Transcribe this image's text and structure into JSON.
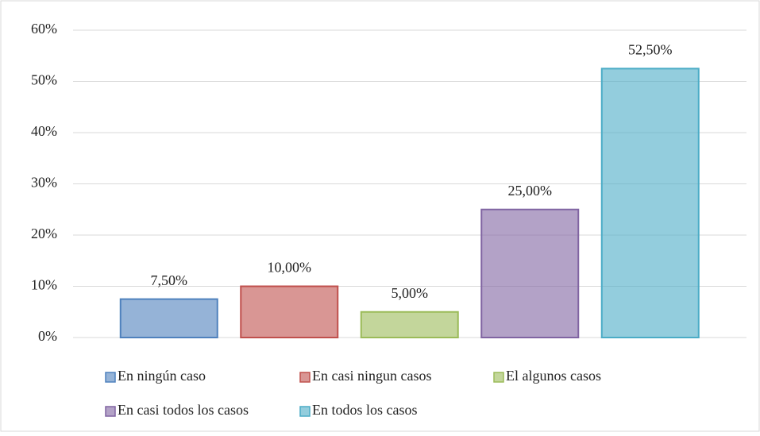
{
  "chart_data": {
    "type": "bar",
    "series": [
      {
        "name": "En ningún caso",
        "color": "#4f81bd",
        "values": [
          7.5
        ],
        "value_labels": [
          "7,50%"
        ]
      },
      {
        "name": "En casi ningun casos",
        "color": "#c0504d",
        "values": [
          10
        ],
        "value_labels": [
          "10,00%"
        ]
      },
      {
        "name": "El algunos casos",
        "color": "#9bbb59",
        "values": [
          5
        ],
        "value_labels": [
          "5,00%"
        ]
      },
      {
        "name": "En casi todos los casos",
        "color": "#8064a2",
        "values": [
          25
        ],
        "value_labels": [
          "25,00%"
        ]
      },
      {
        "name": "En todos los casos",
        "color": "#4bacc6",
        "values": [
          52.5
        ],
        "value_labels": [
          "52,50%"
        ]
      }
    ],
    "ylim": [
      0,
      60
    ],
    "yticks": [
      {
        "value": 0,
        "label": "0%"
      },
      {
        "value": 10,
        "label": "10%"
      },
      {
        "value": 20,
        "label": "20%"
      },
      {
        "value": 30,
        "label": "30%"
      },
      {
        "value": 40,
        "label": "40%"
      },
      {
        "value": 50,
        "label": "50%"
      },
      {
        "value": 60,
        "label": "60%"
      }
    ],
    "grid": true,
    "legend": "bottom"
  }
}
